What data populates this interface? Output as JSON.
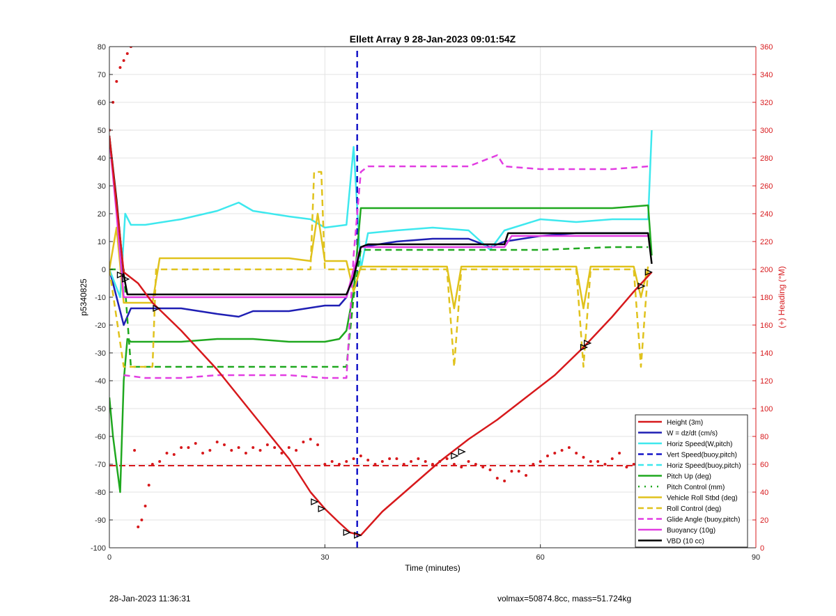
{
  "chart_data": {
    "type": "line",
    "title": "Ellett Array 9 28-Jan-2023 09:01:54Z",
    "xlabel": "Time (minutes)",
    "ylabel": "p5340825",
    "y2label": "(+) Heading (°M)",
    "xlim": [
      0,
      90
    ],
    "ylim": [
      -100,
      80
    ],
    "y2lim": [
      0,
      360
    ],
    "xticks": [
      "0",
      "30",
      "60",
      "90"
    ],
    "yticks": [
      "-100",
      "-90",
      "-80",
      "-70",
      "-60",
      "-50",
      "-40",
      "-30",
      "-20",
      "-10",
      "0",
      "10",
      "20",
      "30",
      "40",
      "50",
      "60",
      "70",
      "80"
    ],
    "y2ticks": [
      "0",
      "20",
      "40",
      "60",
      "80",
      "100",
      "120",
      "140",
      "160",
      "180",
      "200",
      "220",
      "240",
      "260",
      "280",
      "300",
      "320",
      "340",
      "360"
    ],
    "grid": true,
    "legend_position": "bottom-right",
    "series": [
      {
        "name": "Height (3m)",
        "color": "#d7191c",
        "style": "solid",
        "x": [
          0,
          2,
          4,
          6,
          10,
          15,
          20,
          25,
          28,
          30,
          32,
          33.5,
          35,
          38,
          42,
          46,
          50,
          54,
          58,
          62,
          66,
          70,
          73,
          75.5
        ],
        "y": [
          48,
          -1,
          -5,
          -12,
          -22,
          -36,
          -52,
          -68,
          -80,
          -86,
          -91,
          -94.5,
          -95.5,
          -87,
          -78,
          -69,
          -61,
          -54,
          -46,
          -38,
          -28,
          -17,
          -8,
          -1
        ]
      },
      {
        "name": "W = dz/dt (cm/s)",
        "color": "#1f1fb4",
        "style": "solid",
        "x": [
          0,
          1.5,
          2,
          3,
          5,
          10,
          15,
          18,
          20,
          25,
          30,
          32,
          33,
          35,
          40,
          45,
          50,
          53,
          55,
          60,
          65,
          70,
          75
        ],
        "y": [
          0,
          -15,
          -20,
          -14,
          -14,
          -14,
          -16,
          -17,
          -15,
          -15,
          -13,
          -13,
          -10,
          8,
          10,
          11,
          11,
          8,
          10,
          12,
          13,
          13,
          13
        ]
      },
      {
        "name": "Horiz Speed(W,pitch)",
        "color": "#3ee8ee",
        "style": "solid",
        "x": [
          0,
          1.5,
          2.2,
          3,
          5,
          10,
          15,
          18,
          20,
          25,
          28,
          30,
          33,
          34,
          35,
          36,
          40,
          45,
          50,
          53,
          55,
          60,
          65,
          70,
          75,
          75.5
        ],
        "y": [
          0,
          -10,
          20,
          16,
          16,
          18,
          21,
          24,
          21,
          19,
          18,
          15,
          16,
          44,
          0,
          13,
          14,
          15,
          14,
          7,
          14,
          18,
          17,
          18,
          18,
          50
        ]
      },
      {
        "name": "Vert Speed(buoy,pitch)",
        "color": "#1515c8",
        "style": "dashed",
        "x": [
          34.5,
          34.5
        ],
        "y": [
          -100,
          80
        ]
      },
      {
        "name": "Horiz Speed(buoy,pitch)",
        "color": "#3ee8ee",
        "style": "dashed",
        "x": [],
        "y": []
      },
      {
        "name": "Pitch Up (deg)",
        "color": "#1fa81f",
        "style": "solid",
        "x": [
          0,
          0.5,
          1,
          1.5,
          2,
          2.5,
          3,
          5,
          10,
          15,
          20,
          25,
          30,
          32,
          33,
          34,
          35,
          40,
          45,
          50,
          55,
          60,
          65,
          70,
          75,
          75.5
        ],
        "y": [
          -46,
          -60,
          -70,
          -80,
          -40,
          -25,
          -26,
          -26,
          -26,
          -25,
          -25,
          -26,
          -26,
          -25,
          -22,
          -8,
          22,
          22,
          22,
          22,
          22,
          22,
          22,
          22,
          23,
          5
        ]
      },
      {
        "name": "Pitch Control (mm)",
        "color": "#1fa81f",
        "style": "dashed",
        "x": [
          0,
          2,
          3,
          5,
          10,
          20,
          30,
          33,
          34,
          35,
          40,
          50,
          55,
          60,
          70,
          75
        ],
        "y": [
          0,
          0,
          -35,
          -35,
          -35,
          -35,
          -35,
          -35,
          -10,
          7,
          7,
          7,
          7,
          7,
          8,
          8
        ]
      },
      {
        "name": "Vehicle Roll Stbd (deg)",
        "color": "#e0c21c",
        "style": "solid",
        "x": [
          0,
          1,
          2,
          3,
          6,
          7,
          10,
          15,
          20,
          25,
          28,
          29,
          30,
          33,
          34,
          35,
          40,
          47,
          48,
          49,
          50,
          55,
          65,
          66,
          67,
          70,
          73,
          74,
          75
        ],
        "y": [
          0,
          15,
          -12,
          -12,
          -12,
          4,
          4,
          4,
          4,
          4,
          3,
          20,
          3,
          3,
          -8,
          1,
          1,
          1,
          -14,
          1,
          1,
          1,
          1,
          -14,
          1,
          1,
          1,
          -10,
          1
        ]
      },
      {
        "name": "Roll Control (deg)",
        "color": "#e0c21c",
        "style": "dashed",
        "x": [
          0,
          2,
          2.5,
          6,
          6.5,
          10,
          20,
          28,
          28.5,
          29.5,
          30,
          34,
          35,
          47,
          48,
          49,
          50,
          65,
          66,
          67,
          73,
          74,
          75
        ],
        "y": [
          0,
          -35,
          -35,
          -35,
          0,
          0,
          0,
          0,
          35,
          35,
          0,
          0,
          0,
          0,
          -35,
          0,
          0,
          0,
          -35,
          0,
          0,
          -35,
          0
        ]
      },
      {
        "name": "Glide Angle (buoy,pitch)",
        "color": "#e23de2",
        "style": "dashed",
        "x": [
          2,
          5,
          10,
          15,
          20,
          25,
          30,
          33,
          34,
          35,
          36,
          40,
          45,
          50,
          54,
          55,
          60,
          65,
          70,
          75
        ],
        "y": [
          -38,
          -39,
          -39,
          -38,
          -38,
          -38,
          -39,
          -39,
          5,
          35,
          37,
          37,
          37,
          37,
          41,
          37,
          36,
          36,
          36,
          37
        ]
      },
      {
        "name": "Buoyancy (10g)",
        "color": "#e23de2",
        "style": "solid",
        "x": [
          0,
          1,
          2,
          3,
          10,
          20,
          30,
          33,
          34,
          35,
          40,
          50,
          55,
          56,
          60,
          70,
          75
        ],
        "y": [
          47,
          20,
          -10,
          -10,
          -10,
          -10,
          -10,
          -10,
          0,
          8,
          8,
          8,
          8,
          12,
          12,
          12,
          12
        ]
      },
      {
        "name": "VBD (10 cc)",
        "color": "#000000",
        "style": "solid",
        "x": [
          0,
          1,
          2,
          2.5,
          5,
          10,
          20,
          30,
          33,
          34,
          35,
          36,
          40,
          50,
          55,
          55.5,
          60,
          70,
          75,
          75.5
        ],
        "y": [
          48,
          25,
          -2,
          -9,
          -9,
          -9,
          -9,
          -9,
          -9,
          -3,
          8,
          9,
          9,
          9,
          9,
          13,
          13,
          13,
          13,
          2
        ]
      }
    ],
    "heading_scatter": {
      "axis": "right",
      "color": "#d7191c",
      "x": [
        0,
        0.5,
        1,
        1.5,
        2,
        2.5,
        3,
        3.5,
        4,
        4.5,
        5,
        5.5,
        6,
        7,
        8,
        9,
        10,
        11,
        12,
        13,
        14,
        15,
        16,
        17,
        18,
        19,
        20,
        21,
        22,
        23,
        24,
        25,
        26,
        27,
        28,
        29,
        30,
        31,
        32,
        33,
        34,
        35,
        36,
        37,
        38,
        39,
        40,
        41,
        42,
        43,
        44,
        45,
        46,
        47,
        48,
        49,
        50,
        51,
        52,
        53,
        54,
        55,
        56,
        57,
        58,
        59,
        60,
        61,
        62,
        63,
        64,
        65,
        66,
        67,
        68,
        69,
        70,
        71,
        72,
        73,
        74,
        75
      ],
      "y": [
        300,
        320,
        335,
        345,
        350,
        355,
        360,
        70,
        15,
        20,
        30,
        45,
        60,
        62,
        68,
        67,
        72,
        72,
        75,
        68,
        70,
        76,
        74,
        70,
        72,
        68,
        72,
        70,
        74,
        72,
        68,
        72,
        70,
        76,
        78,
        74,
        60,
        62,
        60,
        62,
        64,
        66,
        63,
        60,
        62,
        64,
        64,
        60,
        62,
        64,
        62,
        60,
        62,
        64,
        60,
        58,
        62,
        60,
        58,
        56,
        50,
        48,
        55,
        55,
        52,
        60,
        62,
        66,
        68,
        70,
        72,
        68,
        65,
        62,
        62,
        60,
        64,
        68,
        58,
        60,
        68,
        70
      ],
      "mean": 59
    },
    "markers": {
      "x": [
        1.5,
        2.2,
        6.5,
        28.5,
        29.5,
        33,
        34.5,
        48,
        49,
        66,
        66.5,
        74,
        75
      ],
      "y": [
        -2,
        -3.5,
        -14,
        -83.5,
        -86,
        -94.5,
        -95.5,
        -67,
        -65.5,
        -28,
        -26.5,
        -6,
        -1
      ]
    }
  },
  "footer": {
    "left": "28-Jan-2023 11:36:31",
    "right": "volmax=50874.8cc, mass=51.724kg"
  }
}
